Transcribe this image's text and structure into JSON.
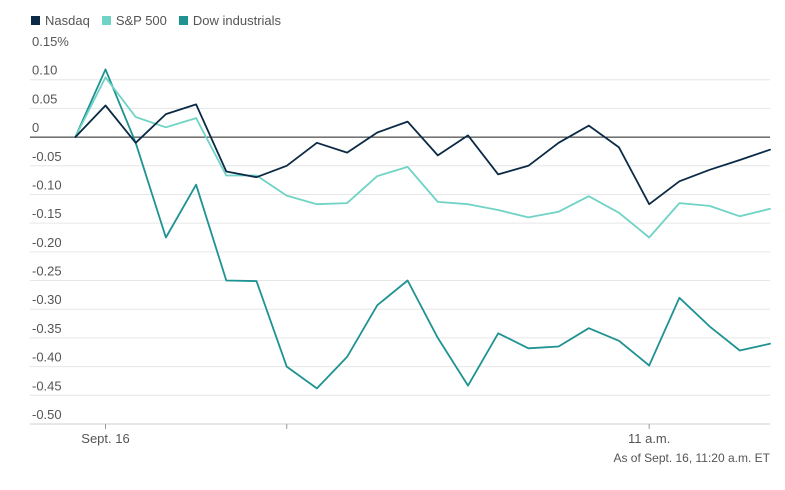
{
  "chart_data": {
    "type": "line",
    "y_unit": "%",
    "ylim": [
      -0.5,
      0.15
    ],
    "yticks": [
      {
        "value": 0.15,
        "label": "0.15%"
      },
      {
        "value": 0.1,
        "label": "0.10"
      },
      {
        "value": 0.05,
        "label": "0.05"
      },
      {
        "value": 0,
        "label": "0"
      },
      {
        "value": -0.05,
        "label": "-0.05"
      },
      {
        "value": -0.1,
        "label": "-0.10"
      },
      {
        "value": -0.15,
        "label": "-0.15"
      },
      {
        "value": -0.2,
        "label": "-0.20"
      },
      {
        "value": -0.25,
        "label": "-0.25"
      },
      {
        "value": -0.3,
        "label": "-0.30"
      },
      {
        "value": -0.35,
        "label": "-0.35"
      },
      {
        "value": -0.4,
        "label": "-0.40"
      },
      {
        "value": -0.45,
        "label": "-0.45"
      },
      {
        "value": -0.5,
        "label": "-0.50"
      }
    ],
    "x": [
      "9:30",
      "9:40",
      "9:50",
      "10:00",
      "10:10",
      "10:20",
      "10:30",
      "10:40",
      "10:50",
      "11:00",
      "11:10",
      "11:20"
    ],
    "xticks": [
      {
        "value": "9:30",
        "label": "Sept. 16"
      },
      {
        "value": "10:00",
        "label": ""
      },
      {
        "value": "11:00",
        "label": "11 a.m."
      }
    ],
    "series": [
      {
        "name": "Nasdaq",
        "color": "#0b2a45",
        "points": [
          [
            "9:25",
            0
          ],
          [
            "9:30",
            0.055
          ],
          [
            "9:35",
            -0.01
          ],
          [
            "9:40",
            0.04
          ],
          [
            "9:45",
            0.057
          ],
          [
            "9:50",
            -0.06
          ],
          [
            "9:55",
            -0.07
          ],
          [
            "10:00",
            -0.05
          ],
          [
            "10:05",
            -0.01
          ],
          [
            "10:10",
            -0.027
          ],
          [
            "10:15",
            0.008
          ],
          [
            "10:20",
            0.027
          ],
          [
            "10:25",
            -0.032
          ],
          [
            "10:30",
            0.003
          ],
          [
            "10:35",
            -0.065
          ],
          [
            "10:40",
            -0.05
          ],
          [
            "10:45",
            -0.01
          ],
          [
            "10:50",
            0.02
          ],
          [
            "10:55",
            -0.018
          ],
          [
            "11:00",
            -0.117
          ],
          [
            "11:05",
            -0.077
          ],
          [
            "11:10",
            -0.057
          ],
          [
            "11:15",
            -0.04
          ],
          [
            "11:20",
            -0.022
          ]
        ]
      },
      {
        "name": "S&P 500",
        "color": "#6fd3c5",
        "points": [
          [
            "9:25",
            0
          ],
          [
            "9:30",
            0.104
          ],
          [
            "9:35",
            0.035
          ],
          [
            "9:40",
            0.017
          ],
          [
            "9:45",
            0.033
          ],
          [
            "9:50",
            -0.067
          ],
          [
            "9:55",
            -0.067
          ],
          [
            "10:00",
            -0.102
          ],
          [
            "10:05",
            -0.117
          ],
          [
            "10:10",
            -0.115
          ],
          [
            "10:15",
            -0.068
          ],
          [
            "10:20",
            -0.052
          ],
          [
            "10:25",
            -0.113
          ],
          [
            "10:30",
            -0.117
          ],
          [
            "10:35",
            -0.127
          ],
          [
            "10:40",
            -0.14
          ],
          [
            "10:45",
            -0.13
          ],
          [
            "10:50",
            -0.103
          ],
          [
            "10:55",
            -0.132
          ],
          [
            "11:00",
            -0.175
          ],
          [
            "11:05",
            -0.115
          ],
          [
            "11:10",
            -0.12
          ],
          [
            "11:15",
            -0.138
          ],
          [
            "11:20",
            -0.125
          ]
        ]
      },
      {
        "name": "Dow industrials",
        "color": "#1f9292",
        "points": [
          [
            "9:25",
            0
          ],
          [
            "9:30",
            0.118
          ],
          [
            "9:35",
            -0.01
          ],
          [
            "9:40",
            -0.175
          ],
          [
            "9:45",
            -0.083
          ],
          [
            "9:50",
            -0.25
          ],
          [
            "9:55",
            -0.251
          ],
          [
            "10:00",
            -0.4
          ],
          [
            "10:05",
            -0.438
          ],
          [
            "10:10",
            -0.383
          ],
          [
            "10:15",
            -0.293
          ],
          [
            "10:20",
            -0.25
          ],
          [
            "10:25",
            -0.35
          ],
          [
            "10:30",
            -0.433
          ],
          [
            "10:35",
            -0.342
          ],
          [
            "10:40",
            -0.368
          ],
          [
            "10:45",
            -0.365
          ],
          [
            "10:50",
            -0.333
          ],
          [
            "10:55",
            -0.355
          ],
          [
            "11:00",
            -0.398
          ],
          [
            "11:05",
            -0.28
          ],
          [
            "11:10",
            -0.33
          ],
          [
            "11:15",
            -0.372
          ],
          [
            "11:20",
            -0.36
          ]
        ]
      }
    ],
    "note": "As of Sept. 16, 11:20 a.m. ET",
    "grid": true,
    "legend_position": "top-left"
  }
}
